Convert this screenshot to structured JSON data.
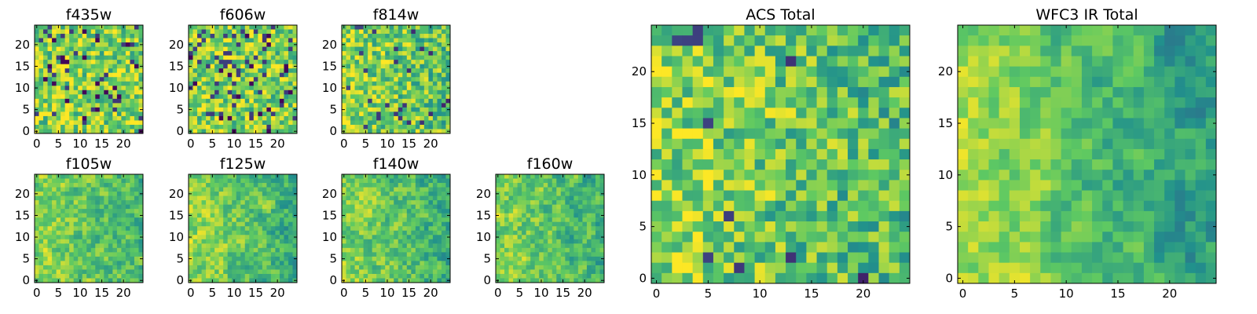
{
  "chart_data": [
    {
      "type": "heatmap",
      "title": "f435w",
      "xlim": [
        0,
        24
      ],
      "ylim": [
        0,
        24
      ],
      "xticks": [
        "0",
        "5",
        "10",
        "15",
        "20"
      ],
      "yticks": [
        "0",
        "5",
        "10",
        "15",
        "20"
      ],
      "seed": 11,
      "smooth": 0.0,
      "gradient": 0.05
    },
    {
      "type": "heatmap",
      "title": "f606w",
      "xlim": [
        0,
        24
      ],
      "ylim": [
        0,
        24
      ],
      "xticks": [
        "0",
        "5",
        "10",
        "15",
        "20"
      ],
      "yticks": [
        "0",
        "5",
        "10",
        "15",
        "20"
      ],
      "seed": 23,
      "smooth": 0.0,
      "gradient": 0.05
    },
    {
      "type": "heatmap",
      "title": "f814w",
      "xlim": [
        0,
        24
      ],
      "ylim": [
        0,
        24
      ],
      "xticks": [
        "0",
        "5",
        "10",
        "15",
        "20"
      ],
      "yticks": [
        "0",
        "5",
        "10",
        "15",
        "20"
      ],
      "seed": 37,
      "smooth": 0.1,
      "gradient": 0.2
    },
    {
      "type": "heatmap",
      "title": "f105w",
      "xlim": [
        0,
        24
      ],
      "ylim": [
        0,
        24
      ],
      "xticks": [
        "0",
        "5",
        "10",
        "15",
        "20"
      ],
      "yticks": [
        "0",
        "5",
        "10",
        "15",
        "20"
      ],
      "seed": 41,
      "smooth": 0.5,
      "gradient": 0.35
    },
    {
      "type": "heatmap",
      "title": "f125w",
      "xlim": [
        0,
        24
      ],
      "ylim": [
        0,
        24
      ],
      "xticks": [
        "0",
        "5",
        "10",
        "15",
        "20"
      ],
      "yticks": [
        "0",
        "5",
        "10",
        "15",
        "20"
      ],
      "seed": 53,
      "smooth": 0.5,
      "gradient": 0.35
    },
    {
      "type": "heatmap",
      "title": "f140w",
      "xlim": [
        0,
        24
      ],
      "ylim": [
        0,
        24
      ],
      "xticks": [
        "0",
        "5",
        "10",
        "15",
        "20"
      ],
      "yticks": [
        "0",
        "5",
        "10",
        "15",
        "20"
      ],
      "seed": 67,
      "smooth": 0.5,
      "gradient": 0.4
    },
    {
      "type": "heatmap",
      "title": "f160w",
      "xlim": [
        0,
        24
      ],
      "ylim": [
        0,
        24
      ],
      "xticks": [
        "0",
        "5",
        "10",
        "15",
        "20"
      ],
      "yticks": [
        "0",
        "5",
        "10",
        "15",
        "20"
      ],
      "seed": 79,
      "smooth": 0.5,
      "gradient": 0.4
    },
    {
      "type": "heatmap",
      "title": "ACS Total",
      "xlim": [
        0,
        24
      ],
      "ylim": [
        0,
        24
      ],
      "xticks": [
        "0",
        "5",
        "10",
        "15",
        "20"
      ],
      "yticks": [
        "0",
        "5",
        "10",
        "15",
        "20"
      ],
      "seed": 97,
      "smooth": 0.15,
      "gradient": 0.3
    },
    {
      "type": "heatmap",
      "title": "WFC3 IR Total",
      "xlim": [
        0,
        24
      ],
      "ylim": [
        0,
        24
      ],
      "xticks": [
        "0",
        "5",
        "10",
        "15",
        "20"
      ],
      "yticks": [
        "0",
        "5",
        "10",
        "15",
        "20"
      ],
      "seed": 131,
      "smooth": 0.6,
      "gradient": 0.6
    }
  ],
  "colormap": [
    "#440154",
    "#3b528b",
    "#21918c",
    "#5ec962",
    "#fde725"
  ]
}
